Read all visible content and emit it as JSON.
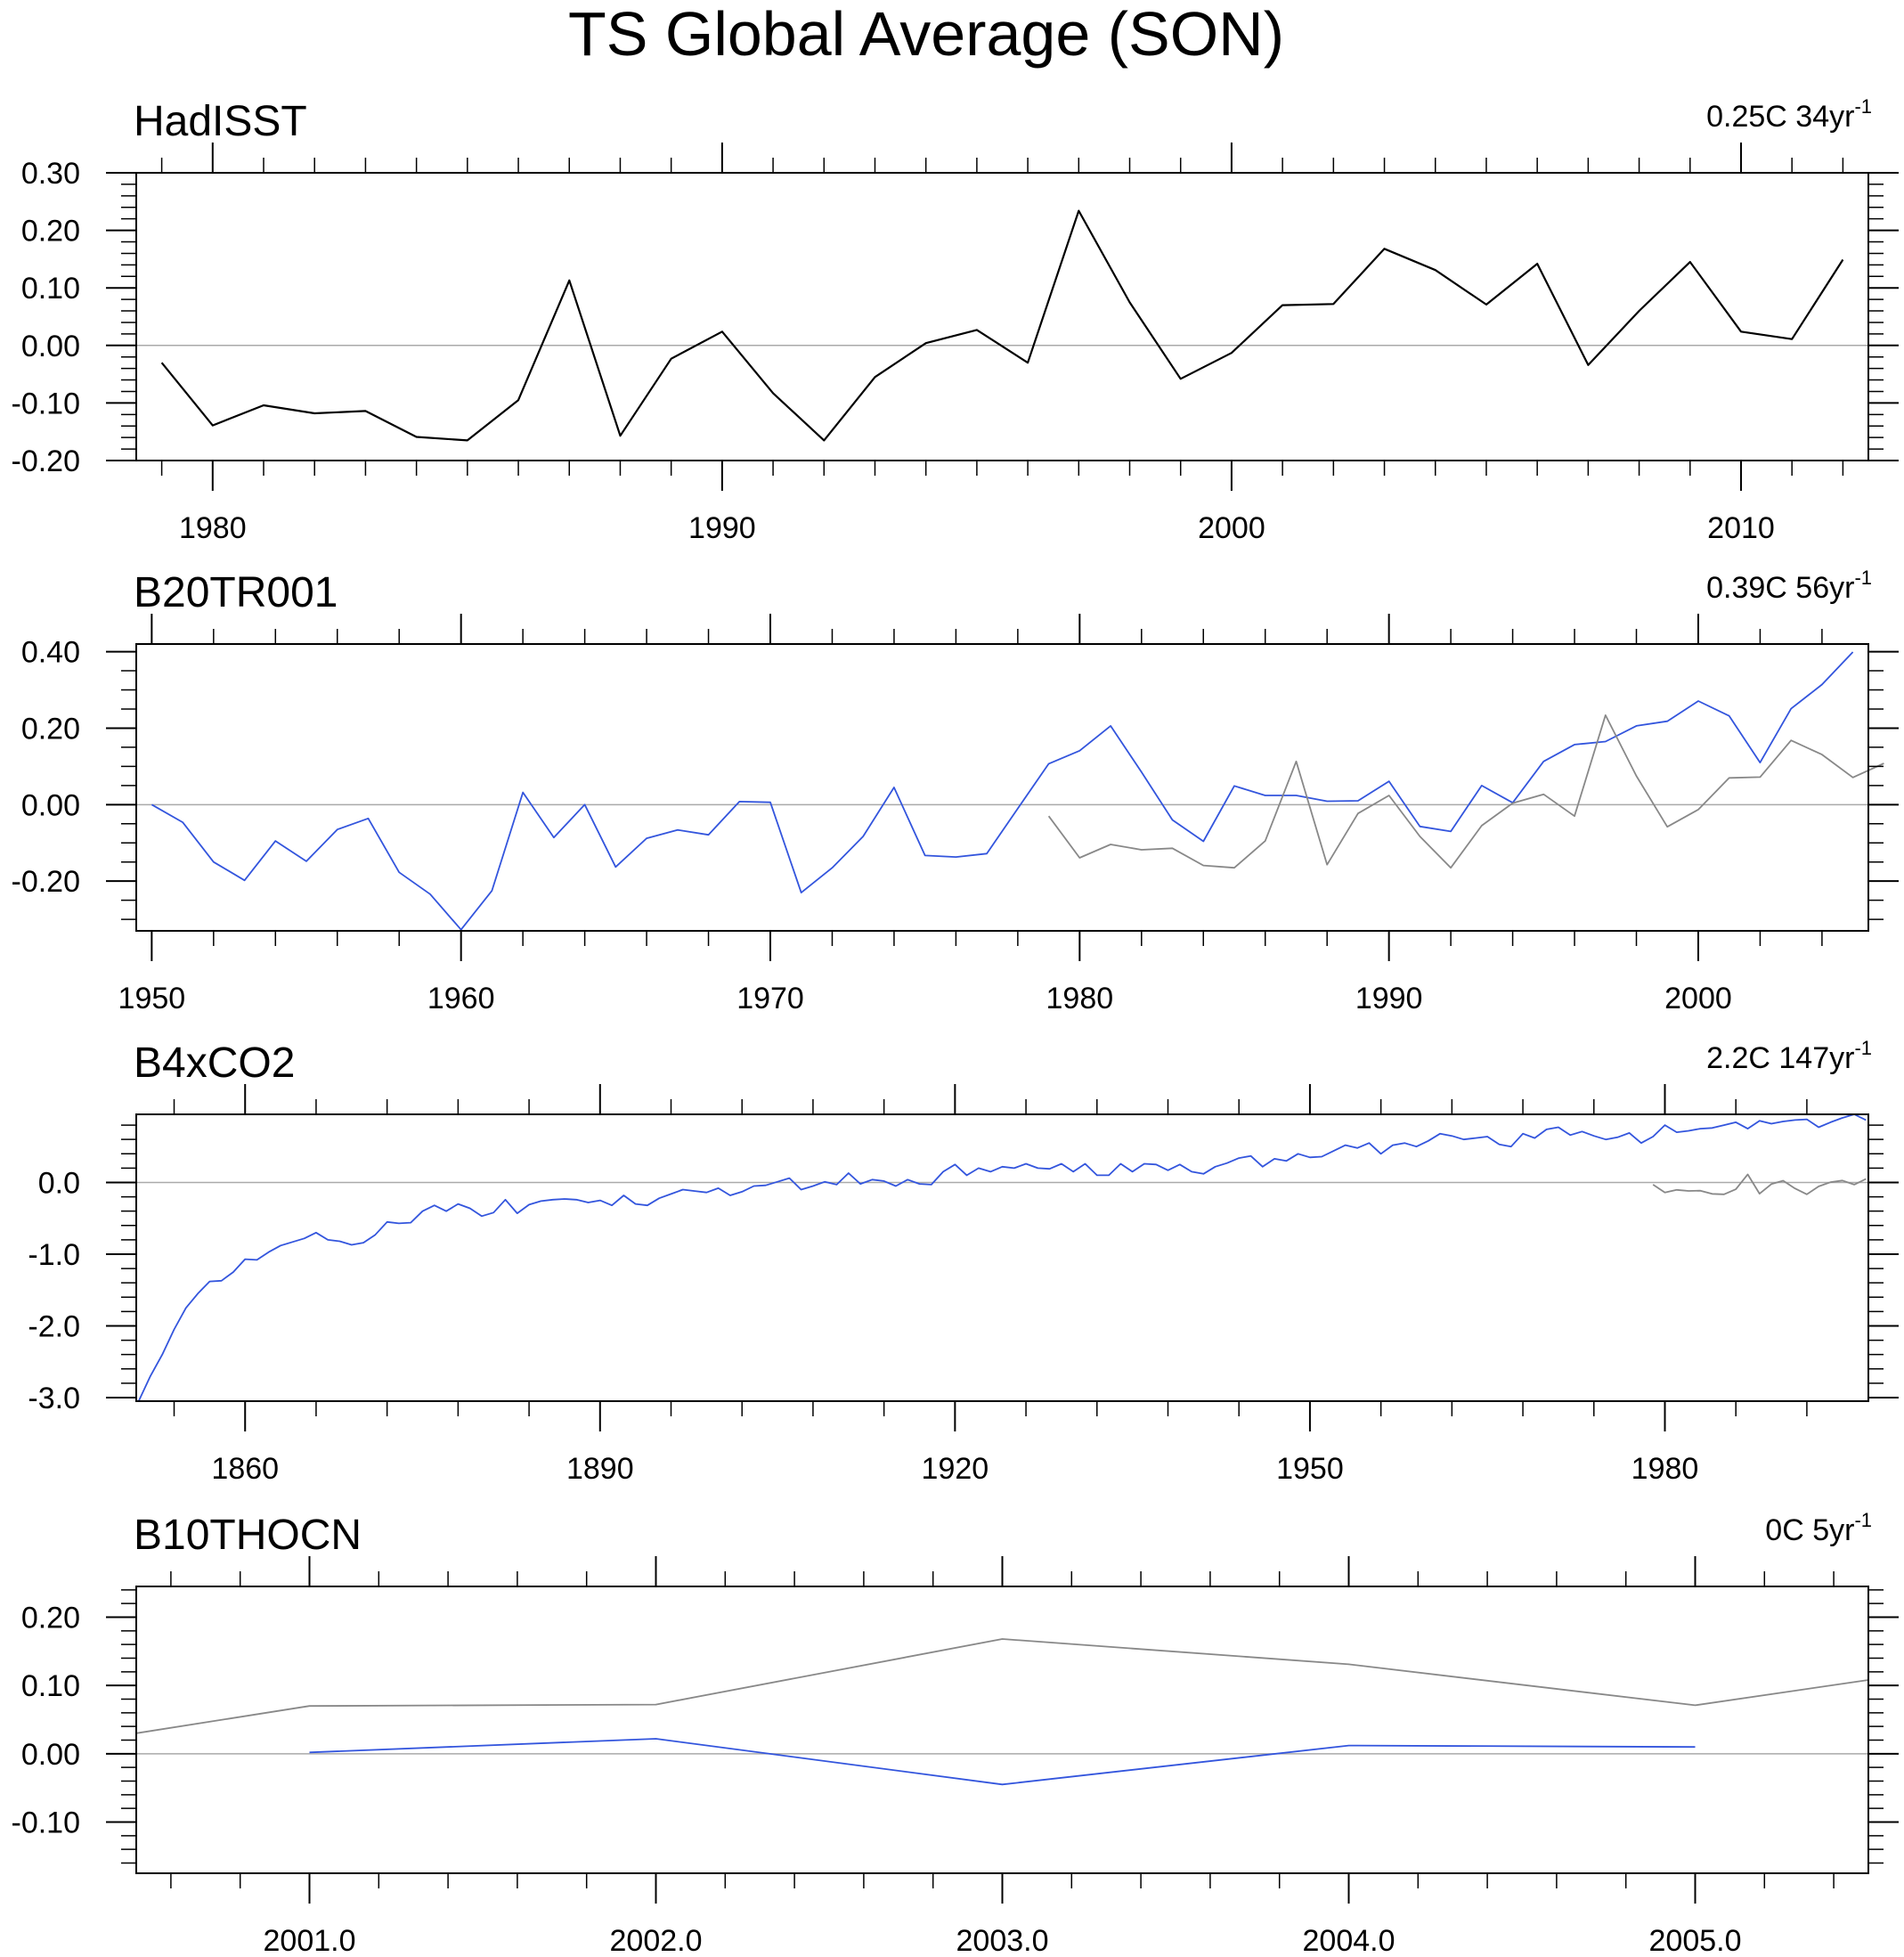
{
  "title": "TS Global Average (SON)",
  "colors": {
    "model": "#3355dd",
    "obs": "#888888",
    "obs_main": "#000000",
    "zero": "#aaaaaa",
    "axis": "#000000"
  },
  "chart_data": [
    {
      "type": "line",
      "name": "HadISST",
      "trend_text": "0.25C 34yr",
      "trend_sup": "-1",
      "xlim": [
        1978.5,
        2012.5
      ],
      "ylim": [
        -0.2,
        0.3
      ],
      "xticks": [
        1980,
        1990,
        2000,
        2010
      ],
      "xtick_labels": [
        "1980",
        "1990",
        "2000",
        "2010"
      ],
      "xminor": 1,
      "yticks": [
        -0.2,
        -0.1,
        0.0,
        0.1,
        0.2,
        0.3
      ],
      "ytick_labels": [
        "-0.20",
        "-0.10",
        "0.00",
        "0.10",
        "0.20",
        "0.30"
      ],
      "yminor": 0.02,
      "series": [
        {
          "name": "HadISST",
          "color_key": "obs_main",
          "x_start": 1979,
          "values": [
            -0.03,
            -0.139,
            -0.104,
            -0.118,
            -0.114,
            -0.159,
            -0.165,
            -0.095,
            0.113,
            -0.157,
            -0.023,
            0.024,
            -0.083,
            -0.165,
            -0.055,
            0.004,
            0.027,
            -0.03,
            0.234,
            0.075,
            -0.058,
            -0.013,
            0.07,
            0.072,
            0.168,
            0.131,
            0.071,
            0.142,
            -0.034,
            0.06,
            0.145,
            0.024,
            0.011,
            0.149
          ]
        }
      ]
    },
    {
      "type": "line",
      "name": "B20TR001",
      "trend_text": "0.39C 56yr",
      "trend_sup": "-1",
      "xlim": [
        1949.5,
        2005.5
      ],
      "ylim": [
        -0.33,
        0.42
      ],
      "xticks": [
        1950,
        1960,
        1970,
        1980,
        1990,
        2000
      ],
      "xtick_labels": [
        "1950",
        "1960",
        "1970",
        "1980",
        "1990",
        "2000"
      ],
      "xminor": 2,
      "yticks": [
        -0.2,
        0.0,
        0.2,
        0.4
      ],
      "ytick_labels": [
        "-0.20",
        "0.00",
        "0.20",
        "0.40"
      ],
      "yminor": 0.05,
      "series": [
        {
          "name": "B20TR001",
          "color_key": "model",
          "x_start": 1950,
          "values": [
            0.0,
            -0.046,
            -0.15,
            -0.198,
            -0.095,
            -0.148,
            -0.065,
            -0.036,
            -0.177,
            -0.234,
            -0.327,
            -0.225,
            0.032,
            -0.086,
            0.0,
            -0.163,
            -0.088,
            -0.066,
            -0.079,
            0.008,
            0.006,
            -0.23,
            -0.165,
            -0.083,
            0.045,
            -0.133,
            -0.137,
            -0.128,
            -0.01,
            0.107,
            0.141,
            0.206,
            0.085,
            -0.04,
            -0.096,
            0.049,
            0.024,
            0.024,
            0.009,
            0.01,
            0.061,
            -0.057,
            -0.07,
            0.05,
            0.005,
            0.113,
            0.157,
            0.165,
            0.206,
            0.218,
            0.271,
            0.232,
            0.11,
            0.251,
            0.314,
            0.399
          ]
        },
        {
          "name": "HadISST",
          "color_key": "obs",
          "x_start": 1979,
          "values": [
            -0.03,
            -0.139,
            -0.104,
            -0.118,
            -0.114,
            -0.159,
            -0.165,
            -0.095,
            0.113,
            -0.157,
            -0.023,
            0.024,
            -0.083,
            -0.165,
            -0.055,
            0.004,
            0.027,
            -0.03,
            0.234,
            0.075,
            -0.058,
            -0.013,
            0.07,
            0.072,
            0.168,
            0.131,
            0.071,
            0.108
          ]
        }
      ]
    },
    {
      "type": "line",
      "name": "B4xCO2",
      "trend_text": "2.2C 147yr",
      "trend_sup": "-1",
      "xlim": [
        1850.8,
        1997.2
      ],
      "ylim": [
        -3.05,
        0.95
      ],
      "xticks": [
        1860,
        1890,
        1920,
        1950,
        1980
      ],
      "xtick_labels": [
        "1860",
        "1890",
        "1920",
        "1950",
        "1980"
      ],
      "xminor": 6,
      "yticks": [
        -3.0,
        -2.0,
        -1.0,
        0.0
      ],
      "ytick_labels": [
        "-3.0",
        "-2.0",
        "-1.0",
        "0.0"
      ],
      "yminor": 0.2,
      "series": [
        {
          "name": "B4xCO2",
          "color_key": "model",
          "x_start": 1851,
          "values": [
            -3.05,
            -2.7,
            -2.4,
            -2.05,
            -1.75,
            -1.55,
            -1.38,
            -1.37,
            -1.25,
            -1.07,
            -1.08,
            -0.97,
            -0.88,
            -0.83,
            -0.78,
            -0.7,
            -0.8,
            -0.82,
            -0.87,
            -0.84,
            -0.73,
            -0.55,
            -0.57,
            -0.56,
            -0.4,
            -0.32,
            -0.4,
            -0.3,
            -0.36,
            -0.47,
            -0.42,
            -0.24,
            -0.43,
            -0.31,
            -0.26,
            -0.24,
            -0.23,
            -0.24,
            -0.28,
            -0.25,
            -0.32,
            -0.18,
            -0.3,
            -0.32,
            -0.22,
            -0.16,
            -0.1,
            -0.12,
            -0.14,
            -0.08,
            -0.18,
            -0.13,
            -0.05,
            -0.04,
            0.01,
            0.06,
            -0.1,
            -0.05,
            0.01,
            -0.03,
            0.13,
            -0.02,
            0.04,
            0.02,
            -0.05,
            0.04,
            -0.02,
            -0.03,
            0.15,
            0.25,
            0.1,
            0.2,
            0.15,
            0.22,
            0.2,
            0.26,
            0.2,
            0.19,
            0.26,
            0.15,
            0.26,
            0.1,
            0.1,
            0.26,
            0.15,
            0.26,
            0.25,
            0.17,
            0.25,
            0.15,
            0.12,
            0.22,
            0.27,
            0.34,
            0.37,
            0.22,
            0.33,
            0.3,
            0.4,
            0.35,
            0.36,
            0.44,
            0.52,
            0.48,
            0.55,
            0.4,
            0.52,
            0.55,
            0.5,
            0.58,
            0.68,
            0.65,
            0.6,
            0.62,
            0.64,
            0.53,
            0.5,
            0.68,
            0.62,
            0.74,
            0.77,
            0.66,
            0.71,
            0.65,
            0.6,
            0.63,
            0.69,
            0.55,
            0.64,
            0.8,
            0.7,
            0.72,
            0.75,
            0.76,
            0.8,
            0.84,
            0.75,
            0.86,
            0.82,
            0.85,
            0.87,
            0.88,
            0.77,
            0.84,
            0.9,
            0.95,
            0.87
          ]
        },
        {
          "name": "HadISST",
          "color_key": "obs",
          "x_start": 1979,
          "values": [
            -0.03,
            -0.139,
            -0.104,
            -0.118,
            -0.114,
            -0.159,
            -0.165,
            -0.095,
            0.113,
            -0.157,
            -0.023,
            0.024,
            -0.083,
            -0.165,
            -0.055,
            0.004,
            0.027,
            -0.03,
            0.05
          ]
        }
      ]
    },
    {
      "type": "line",
      "name": "B10THOCN",
      "trend_text": "0C 5yr",
      "trend_sup": "-1",
      "xlim": [
        2000.5,
        2005.5
      ],
      "ylim": [
        -0.175,
        0.245
      ],
      "xticks": [
        2001,
        2002,
        2003,
        2004,
        2005
      ],
      "xtick_labels": [
        "2001.0",
        "2002.0",
        "2003.0",
        "2004.0",
        "2005.0"
      ],
      "xminor": 0.2,
      "yticks": [
        -0.1,
        0.0,
        0.1,
        0.2
      ],
      "ytick_labels": [
        "-0.10",
        "0.00",
        "0.10",
        "0.20"
      ],
      "yminor": 0.02,
      "series": [
        {
          "name": "B10THOCN",
          "color_key": "model",
          "x_start": 2001,
          "values": [
            0.002,
            0.022,
            -0.045,
            0.012,
            0.01
          ]
        },
        {
          "name": "HadISST",
          "color_key": "obs",
          "x_start": 2000.5,
          "values": [
            0.03,
            0.07,
            0.072,
            0.168,
            0.131,
            0.071,
            0.108
          ],
          "x": [
            2000.5,
            2001,
            2002,
            2003,
            2004,
            2005,
            2005.5
          ]
        }
      ]
    }
  ]
}
